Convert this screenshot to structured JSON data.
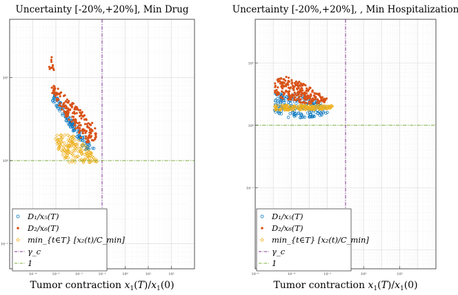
{
  "chart_data": [
    {
      "type": "scatter",
      "title": "Uncertainty [-20%,+20%], Min Drug",
      "xlabel": "Tumor contraction x_1(T)/x_1(0)",
      "xscale": "log",
      "yscale": "log",
      "xlim": [
        1e-05,
        1000
      ],
      "ylim": [
        0.05,
        50
      ],
      "grid": true,
      "legend_position": "bottom-left",
      "xticks": [
        {
          "value": 0.0001,
          "label": "10⁻⁴"
        },
        {
          "value": 0.001,
          "label": "10⁻³"
        },
        {
          "value": 0.01,
          "label": "10⁻²"
        },
        {
          "value": 0.1,
          "label": "10⁻¹"
        },
        {
          "value": 1,
          "label": "10⁰"
        },
        {
          "value": 10,
          "label": "10¹"
        },
        {
          "value": 100,
          "label": "10²"
        }
      ],
      "yticks": [
        {
          "value": 0.1,
          "label": "10⁻¹"
        },
        {
          "value": 1,
          "label": "10⁰"
        },
        {
          "value": 10,
          "label": "10¹"
        }
      ],
      "series": [
        {
          "name": "D1/x5(T)",
          "legend": "D₁/x₅(T)",
          "marker": "open-circle",
          "color": "#0072bd",
          "clouds": [
            {
              "points": [
                [
                  0.0009,
                  6.5
                ],
                [
                  0.003,
                  3.8
                ],
                [
                  0.012,
                  2.2
                ],
                [
                  0.05,
                  1.35
                ],
                [
                  0.02,
                  1.25
                ],
                [
                  0.006,
                  2.2
                ],
                [
                  0.0017,
                  3.6
                ],
                [
                  0.0007,
                  5.2
                ]
              ],
              "density": 130
            }
          ]
        },
        {
          "name": "D2/x6(T)",
          "legend": "D₂/x₆(T)",
          "marker": "filled-dot",
          "color": "#d95319",
          "clouds": [
            {
              "points": [
                [
                  0.0006,
                  9
                ],
                [
                  0.002,
                  6.5
                ],
                [
                  0.012,
                  4
                ],
                [
                  0.05,
                  2.6
                ],
                [
                  0.06,
                  1.8
                ],
                [
                  0.02,
                  1.6
                ],
                [
                  0.005,
                  2.5
                ],
                [
                  0.0012,
                  5
                ],
                [
                  0.0006,
                  7
                ]
              ],
              "density": 200
            },
            {
              "points": [
                [
                  0.00055,
                  20
                ],
                [
                  0.0009,
                  15
                ],
                [
                  0.0008,
                  11
                ],
                [
                  0.0005,
                  12
                ]
              ],
              "density": 10
            }
          ]
        },
        {
          "name": "min x2(t)/Cmin",
          "legend": "min_{t∈T} [x₂(t)/C_min]",
          "marker": "open-diamond",
          "color": "#edb120",
          "clouds": [
            {
              "points": [
                [
                  0.0009,
                  2.05
                ],
                [
                  0.005,
                  2.05
                ],
                [
                  0.02,
                  1.5
                ],
                [
                  0.06,
                  1.08
                ],
                [
                  0.06,
                  0.95
                ],
                [
                  0.003,
                  0.95
                ],
                [
                  0.0012,
                  1.4
                ]
              ],
              "density": 150
            }
          ]
        }
      ],
      "reference_lines": [
        {
          "name": "gamma_c",
          "legend": "γ_c",
          "orientation": "vertical",
          "value": 0.1,
          "color": "#7e2f8e",
          "dash": "dash-dot"
        },
        {
          "name": "one",
          "legend": "1",
          "orientation": "horizontal",
          "value": 1,
          "color": "#77ac30",
          "dash": "dash-dot"
        }
      ]
    },
    {
      "type": "scatter",
      "title": "Uncertainty [-20%,+20%], , Min Hospitalization",
      "xlabel": "Tumor contraction x_1(T)/x_1(0)",
      "xscale": "log",
      "yscale": "log",
      "xlim": [
        1e-06,
        10000
      ],
      "ylim": [
        0.005,
        50
      ],
      "grid": true,
      "legend_position": "bottom-left",
      "xticks": [
        {
          "value": 1e-06,
          "label": "10⁻⁶"
        },
        {
          "value": 0.0001,
          "label": "10⁻⁴"
        },
        {
          "value": 0.01,
          "label": "10⁻²"
        },
        {
          "value": 1,
          "label": "10⁰"
        },
        {
          "value": 100,
          "label": "10²"
        }
      ],
      "yticks": [
        {
          "value": 0.1,
          "label": "10⁻¹"
        },
        {
          "value": 1,
          "label": "10⁰"
        },
        {
          "value": 10,
          "label": "10¹"
        }
      ],
      "series": [
        {
          "name": "D1/x5(T)",
          "legend": "D₁/x₅(T)",
          "marker": "open-circle",
          "color": "#0072bd",
          "clouds": [
            {
              "points": [
                [
                  1.2e-05,
                  3.3
                ],
                [
                  0.0002,
                  3.3
                ],
                [
                  0.002,
                  2.6
                ],
                [
                  0.01,
                  2
                ],
                [
                  0.01,
                  1.5
                ],
                [
                  0.002,
                  1.35
                ],
                [
                  0.0001,
                  1.3
                ],
                [
                  1.2e-05,
                  1.5
                ]
              ],
              "density": 190
            }
          ]
        },
        {
          "name": "D2/x6(T)",
          "legend": "D₂/x₆(T)",
          "marker": "filled-dot",
          "color": "#d95319",
          "clouds": [
            {
              "points": [
                [
                  1.2e-05,
                  5.3
                ],
                [
                  5e-05,
                  6
                ],
                [
                  0.0003,
                  5
                ],
                [
                  0.003,
                  3.4
                ],
                [
                  0.01,
                  2.8
                ],
                [
                  0.01,
                  2.3
                ],
                [
                  0.001,
                  2.2
                ],
                [
                  0.0001,
                  2.4
                ],
                [
                  1.2e-05,
                  3
                ]
              ],
              "density": 240
            }
          ]
        },
        {
          "name": "min x2(t)/Cmin",
          "legend": "min_{t∈T} [x₂(t)/C_min]",
          "marker": "open-diamond",
          "color": "#edb120",
          "clouds": [
            {
              "points": [
                [
                  1.2e-05,
                  2.1
                ],
                [
                  0.001,
                  2.1
                ],
                [
                  0.02,
                  2.05
                ],
                [
                  0.02,
                  1.85
                ],
                [
                  0.001,
                  1.75
                ],
                [
                  1.2e-05,
                  1.75
                ]
              ],
              "density": 170
            }
          ]
        }
      ],
      "reference_lines": [
        {
          "name": "gamma_c",
          "legend": "γ_c",
          "orientation": "vertical",
          "value": 0.1,
          "color": "#7e2f8e",
          "dash": "dash-dot"
        },
        {
          "name": "one",
          "legend": "1",
          "orientation": "horizontal",
          "value": 1,
          "color": "#77ac30",
          "dash": "dash-dot"
        }
      ]
    }
  ]
}
